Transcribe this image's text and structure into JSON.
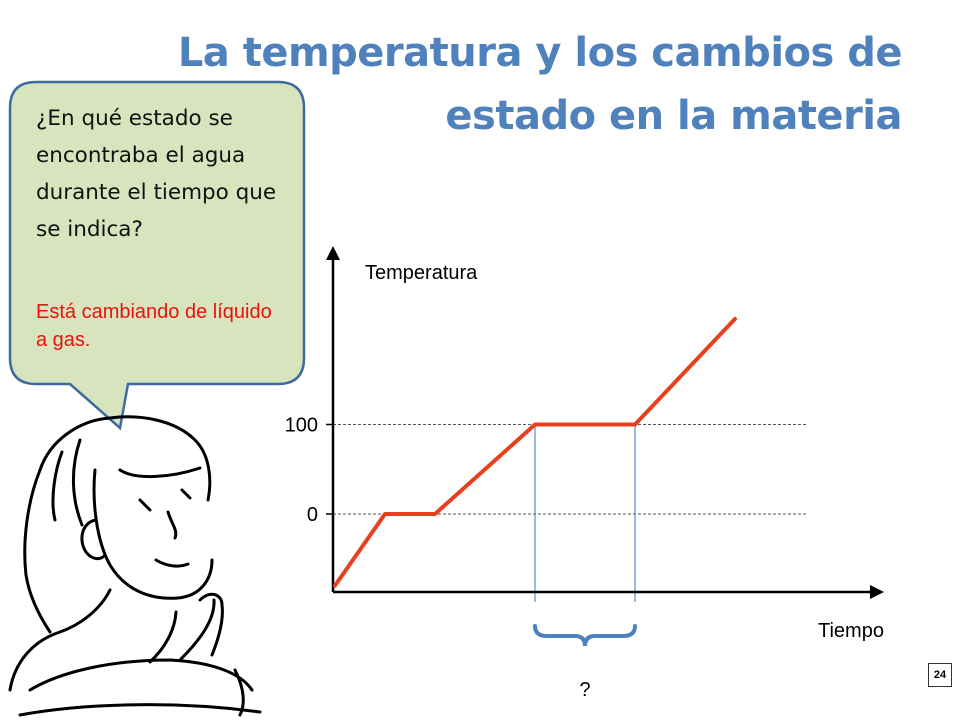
{
  "slide": {
    "title_line1": "La temperatura y los cambios de",
    "title_line2": "estado en la materia",
    "page_number": "24"
  },
  "bubble": {
    "question": "¿En qué estado se encontraba el agua durante el tiempo que se indica?",
    "answer": "Está cambiando de líquido a gas."
  },
  "chart_data": {
    "type": "line",
    "ylabel": "Temperatura",
    "xlabel": "Tiempo",
    "y_ticks": [
      {
        "value": 0,
        "label": "0"
      },
      {
        "value": 100,
        "label": "100"
      }
    ],
    "series": [
      {
        "color": "#E8401C",
        "x": [
          0,
          1,
          2,
          4,
          6,
          8
        ],
        "y": [
          -80,
          0,
          0,
          100,
          100,
          218
        ]
      }
    ],
    "xlim": [
      0,
      10.5
    ],
    "ylim": [
      -90,
      280
    ],
    "highlight_interval": {
      "x": [
        4,
        6
      ],
      "label": "?"
    },
    "reference_lines": [
      0,
      100
    ],
    "colors": {
      "axis": "#000000",
      "reference": "#555555",
      "interval_lines": "#5B8CC8",
      "brace": "#4F81BD",
      "title": "#4F81BD",
      "bubble_fill": "#D7E4BD",
      "bubble_border": "#3E6AA0",
      "answer": "#E8120E"
    }
  }
}
